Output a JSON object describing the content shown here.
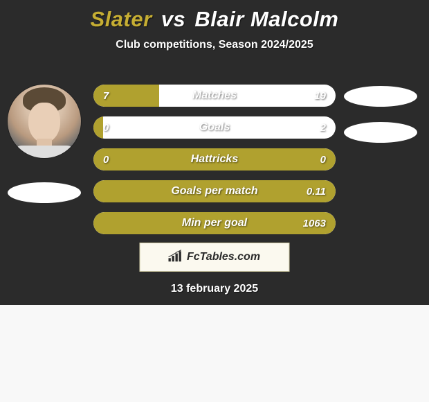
{
  "title": {
    "player1": "Slater",
    "vs": "vs",
    "player2": "Blair Malcolm"
  },
  "subtitle": "Club competitions, Season 2024/2025",
  "colors": {
    "background": "#2b2b2b",
    "player1_bar": "#b0a12f",
    "player2_bar": "#ffffff",
    "text_light": "#ffffff"
  },
  "stats": [
    {
      "label": "Matches",
      "left_value": "7",
      "right_value": "19",
      "left_percent": 27
    },
    {
      "label": "Goals",
      "left_value": "0",
      "right_value": "2",
      "left_percent": 4
    },
    {
      "label": "Hattricks",
      "left_value": "0",
      "right_value": "0",
      "left_percent": 100
    },
    {
      "label": "Goals per match",
      "left_value": "",
      "right_value": "0.11",
      "left_percent": 100
    },
    {
      "label": "Min per goal",
      "left_value": "",
      "right_value": "1063",
      "left_percent": 100
    }
  ],
  "watermark_text": "FcTables.com",
  "date": "13 february 2025"
}
